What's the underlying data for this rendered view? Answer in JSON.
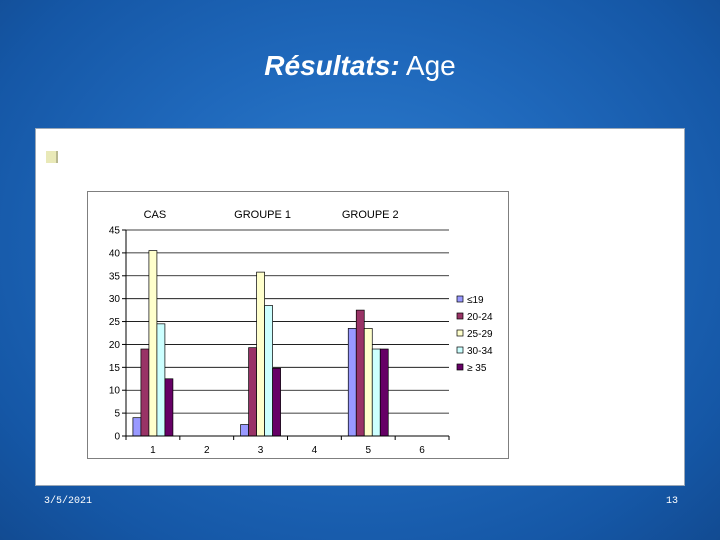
{
  "slide": {
    "title_emphasis": "Résultats:",
    "title_rest": " Age",
    "date": "3/5/2021",
    "page_number": "13"
  },
  "chart_data": {
    "type": "bar",
    "title": "",
    "xlabel": "",
    "ylabel": "",
    "ylim": [
      0,
      45
    ],
    "yticks": [
      0,
      5,
      10,
      15,
      20,
      25,
      30,
      35,
      40,
      45
    ],
    "grid": true,
    "legend_position": "right",
    "group_labels": [
      "CAS",
      "GROUPE 1",
      "GROUPE 2"
    ],
    "categories": [
      "1",
      "2",
      "3",
      "4",
      "5",
      "6"
    ],
    "series": [
      {
        "name": "≤19",
        "color": "#9999ff",
        "values": [
          4,
          null,
          2.5,
          null,
          23.5,
          null
        ]
      },
      {
        "name": "20-24",
        "color": "#993366",
        "values": [
          19,
          null,
          19.3,
          null,
          27.5,
          null
        ]
      },
      {
        "name": "25-29",
        "color": "#ffffcc",
        "values": [
          40.5,
          null,
          35.8,
          null,
          23.5,
          null
        ]
      },
      {
        "name": "30-34",
        "color": "#ccffff",
        "values": [
          24.5,
          null,
          28.5,
          null,
          19,
          null
        ]
      },
      {
        "name": "≥ 35",
        "color": "#660066",
        "values": [
          12.5,
          null,
          14.8,
          null,
          19,
          null
        ]
      }
    ]
  }
}
